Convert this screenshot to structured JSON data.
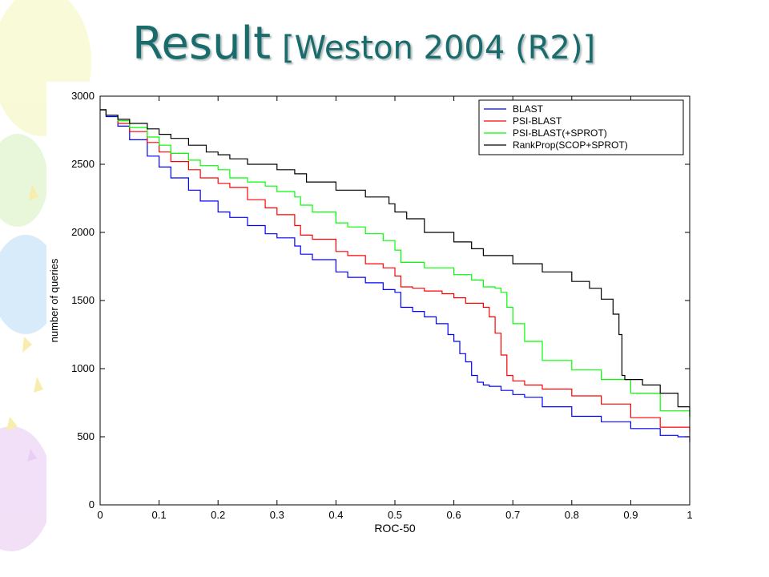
{
  "slide": {
    "title": "Result",
    "subtitle": "[Weston 2004 (R2)]"
  },
  "colors": {
    "title": "#1a6b6b",
    "blast": "#0000ff",
    "psi_blast": "#ff0000",
    "psi_blast_sprot": "#00ff00",
    "rankprop": "#000000"
  },
  "chart_data": {
    "type": "line",
    "title": "",
    "xlabel": "ROC-50",
    "ylabel": "number of queries",
    "xlim": [
      0,
      1
    ],
    "ylim": [
      0,
      3000
    ],
    "xticks": [
      "0",
      "0.1",
      "0.2",
      "0.3",
      "0.4",
      "0.5",
      "0.6",
      "0.7",
      "0.8",
      "0.9",
      "1"
    ],
    "yticks": [
      "0",
      "500",
      "1000",
      "1500",
      "2000",
      "2500",
      "3000"
    ],
    "legend_position": "top-right",
    "grid": false,
    "series": [
      {
        "name": "BLAST",
        "color": "#0000ff",
        "x": [
          0,
          0.01,
          0.03,
          0.05,
          0.08,
          0.1,
          0.12,
          0.15,
          0.17,
          0.2,
          0.22,
          0.25,
          0.28,
          0.3,
          0.33,
          0.34,
          0.36,
          0.4,
          0.42,
          0.45,
          0.48,
          0.5,
          0.51,
          0.53,
          0.55,
          0.57,
          0.59,
          0.6,
          0.61,
          0.62,
          0.63,
          0.64,
          0.65,
          0.66,
          0.68,
          0.7,
          0.72,
          0.75,
          0.8,
          0.85,
          0.9,
          0.95,
          0.98,
          1.0
        ],
        "values": [
          2900,
          2850,
          2780,
          2680,
          2560,
          2480,
          2400,
          2310,
          2230,
          2150,
          2110,
          2050,
          1990,
          1960,
          1900,
          1840,
          1800,
          1710,
          1670,
          1630,
          1580,
          1560,
          1450,
          1420,
          1380,
          1330,
          1250,
          1200,
          1110,
          1050,
          950,
          900,
          880,
          870,
          840,
          810,
          790,
          720,
          650,
          610,
          560,
          510,
          500,
          460
        ]
      },
      {
        "name": "PSI-BLAST",
        "color": "#ff0000",
        "x": [
          0,
          0.01,
          0.03,
          0.05,
          0.08,
          0.1,
          0.12,
          0.15,
          0.17,
          0.2,
          0.22,
          0.25,
          0.28,
          0.3,
          0.33,
          0.34,
          0.36,
          0.4,
          0.42,
          0.45,
          0.48,
          0.5,
          0.51,
          0.53,
          0.55,
          0.58,
          0.6,
          0.62,
          0.65,
          0.66,
          0.67,
          0.68,
          0.69,
          0.7,
          0.72,
          0.75,
          0.8,
          0.85,
          0.9,
          0.95,
          1.0
        ],
        "values": [
          2900,
          2860,
          2800,
          2740,
          2660,
          2590,
          2520,
          2460,
          2400,
          2360,
          2330,
          2240,
          2180,
          2130,
          2050,
          1980,
          1950,
          1860,
          1830,
          1770,
          1740,
          1680,
          1600,
          1590,
          1570,
          1550,
          1520,
          1480,
          1450,
          1380,
          1260,
          1100,
          950,
          910,
          880,
          850,
          800,
          740,
          640,
          570,
          530
        ]
      },
      {
        "name": "PSI-BLAST(+SPROT)",
        "color": "#00ff00",
        "x": [
          0,
          0.01,
          0.03,
          0.05,
          0.08,
          0.1,
          0.12,
          0.15,
          0.17,
          0.2,
          0.22,
          0.25,
          0.28,
          0.3,
          0.33,
          0.34,
          0.36,
          0.4,
          0.42,
          0.45,
          0.48,
          0.5,
          0.51,
          0.55,
          0.6,
          0.63,
          0.65,
          0.67,
          0.68,
          0.69,
          0.7,
          0.72,
          0.75,
          0.8,
          0.85,
          0.9,
          0.95,
          1.0
        ],
        "values": [
          2900,
          2860,
          2820,
          2770,
          2700,
          2640,
          2580,
          2530,
          2490,
          2460,
          2400,
          2370,
          2340,
          2300,
          2260,
          2200,
          2150,
          2070,
          2040,
          1990,
          1940,
          1870,
          1780,
          1740,
          1690,
          1650,
          1600,
          1590,
          1560,
          1450,
          1330,
          1200,
          1060,
          990,
          920,
          820,
          690,
          620
        ]
      },
      {
        "name": "RankProp(SCOP+SPROT)",
        "color": "#000000",
        "x": [
          0,
          0.01,
          0.03,
          0.05,
          0.08,
          0.1,
          0.12,
          0.15,
          0.18,
          0.2,
          0.22,
          0.25,
          0.3,
          0.33,
          0.35,
          0.4,
          0.45,
          0.49,
          0.5,
          0.52,
          0.55,
          0.6,
          0.63,
          0.65,
          0.7,
          0.75,
          0.8,
          0.83,
          0.85,
          0.87,
          0.88,
          0.885,
          0.89,
          0.92,
          0.95,
          0.98,
          1.0
        ],
        "values": [
          2900,
          2860,
          2830,
          2800,
          2760,
          2720,
          2690,
          2640,
          2590,
          2570,
          2540,
          2500,
          2460,
          2430,
          2370,
          2310,
          2260,
          2210,
          2150,
          2100,
          2000,
          1930,
          1880,
          1830,
          1770,
          1710,
          1640,
          1590,
          1510,
          1400,
          1250,
          950,
          920,
          880,
          820,
          720,
          650
        ]
      }
    ]
  }
}
